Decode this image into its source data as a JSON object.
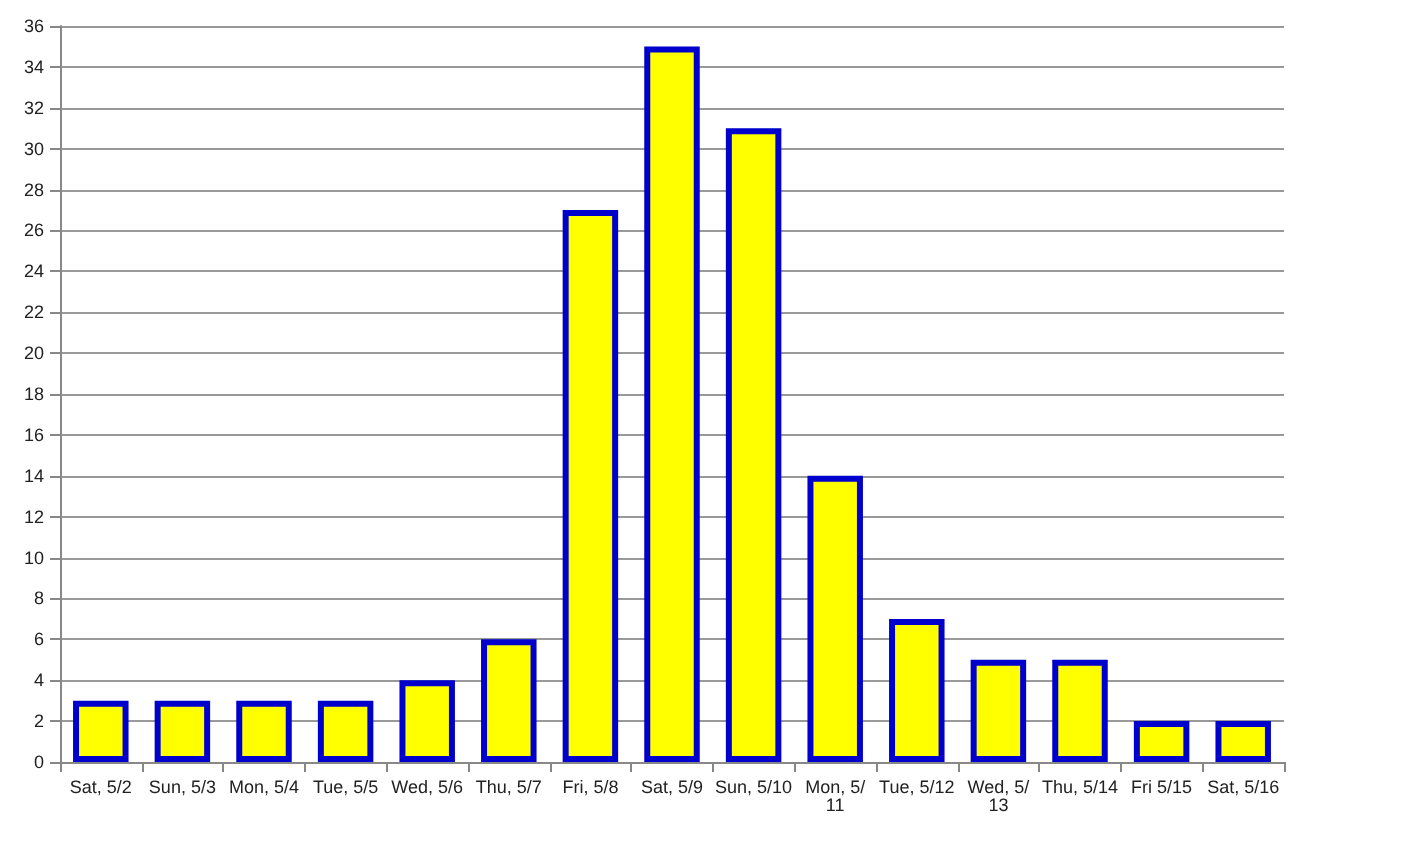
{
  "chart_data": {
    "type": "bar",
    "categories": [
      "Sat, 5/2",
      "Sun, 5/3",
      "Mon, 5/4",
      "Tue, 5/5",
      "Wed, 5/6",
      "Thu, 5/7",
      "Fri, 5/8",
      "Sat, 5/9",
      "Sun, 5/10",
      "Mon, 5/11",
      "Tue, 5/12",
      "Wed, 5/13",
      "Thu, 5/14",
      "Fri 5/15",
      "Sat, 5/16"
    ],
    "values": [
      3,
      3,
      3,
      3,
      4,
      6,
      27,
      35,
      31,
      14,
      7,
      5,
      5,
      2,
      2
    ],
    "color": "#ffff00",
    "ylim": [
      0,
      36
    ],
    "yticks": [
      0,
      2,
      4,
      6,
      8,
      10,
      12,
      14,
      16,
      18,
      20,
      22,
      24,
      26,
      28,
      30,
      32,
      34,
      36
    ],
    "grid": "y"
  }
}
